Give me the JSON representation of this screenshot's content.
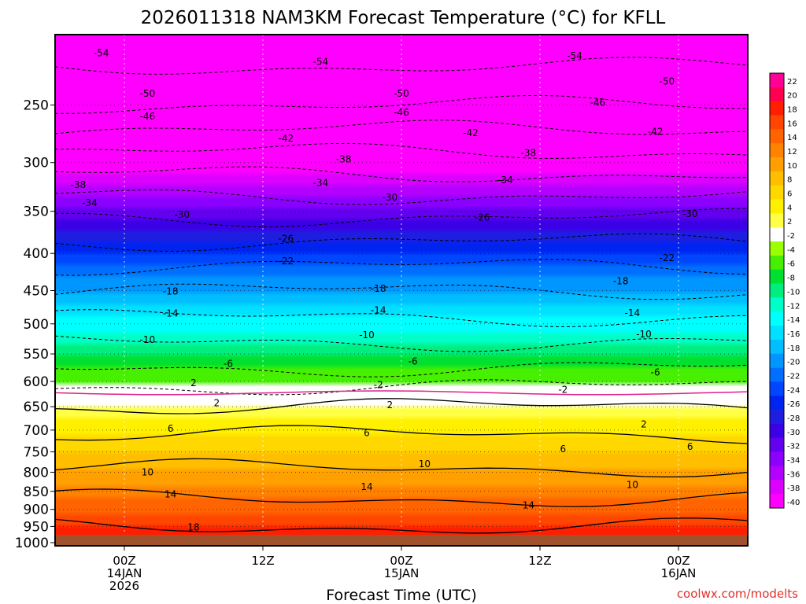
{
  "chart_data": {
    "type": "heatmap",
    "title": "2026011318 NAM3KM Forecast Temperature (°C) for KFLL",
    "xlabel": "Forecast Time (UTC)",
    "ylabel": "",
    "credit": "coolwx.com/modelts",
    "x_ticks": [
      {
        "hour": 6,
        "lines": [
          "00Z",
          "14JAN",
          "2026"
        ]
      },
      {
        "hour": 18,
        "lines": [
          "12Z"
        ]
      },
      {
        "hour": 30,
        "lines": [
          "00Z",
          "15JAN"
        ]
      },
      {
        "hour": 42,
        "lines": [
          "12Z"
        ]
      },
      {
        "hour": 54,
        "lines": [
          "00Z",
          "16JAN"
        ]
      }
    ],
    "xlim_hours": [
      0,
      60
    ],
    "y_ticks": [
      "250",
      "300",
      "350",
      "400",
      "450",
      "500",
      "550",
      "600",
      "650",
      "700",
      "750",
      "800",
      "850",
      "900",
      "950",
      "1000"
    ],
    "y_tick_values": [
      250,
      300,
      350,
      400,
      450,
      500,
      550,
      600,
      650,
      700,
      750,
      800,
      850,
      900,
      950,
      1000
    ],
    "ylim_hpa": [
      200,
      1010
    ],
    "y_scale": "log",
    "grid": "dotted",
    "colorbar_ticks": [
      "22",
      "20",
      "18",
      "16",
      "14",
      "12",
      "10",
      "8",
      "6",
      "4",
      "2",
      "-2",
      "-4",
      "-6",
      "-8",
      "-10",
      "-12",
      "-14",
      "-16",
      "-18",
      "-20",
      "-22",
      "-24",
      "-26",
      "-28",
      "-30",
      "-32",
      "-34",
      "-36",
      "-38",
      "-40"
    ],
    "colorbar_colors": [
      "#ff0096",
      "#ff0050",
      "#ff1e00",
      "#ff4600",
      "#ff6400",
      "#ff8200",
      "#ffa000",
      "#ffbe00",
      "#ffd800",
      "#fff000",
      "#ffff46",
      "#ffffff",
      "#9aff00",
      "#46f000",
      "#00e030",
      "#00ee80",
      "#00ffc8",
      "#00ffff",
      "#00e0ff",
      "#00beff",
      "#0096ff",
      "#006eff",
      "#0046ff",
      "#0024f0",
      "#1e1ee0",
      "#3c00e6",
      "#6400f0",
      "#8c00ff",
      "#b400ff",
      "#dc00ff",
      "#ff00ff"
    ],
    "temperature_profile": [
      {
        "p": 200,
        "t": -57
      },
      {
        "p": 250,
        "t": -50
      },
      {
        "p": 300,
        "t": -40
      },
      {
        "p": 350,
        "t": -31
      },
      {
        "p": 400,
        "t": -24
      },
      {
        "p": 450,
        "t": -18
      },
      {
        "p": 500,
        "t": -13
      },
      {
        "p": 550,
        "t": -8
      },
      {
        "p": 600,
        "t": -4
      },
      {
        "p": 620,
        "t": 0
      },
      {
        "p": 650,
        "t": 2
      },
      {
        "p": 700,
        "t": 5.5
      },
      {
        "p": 750,
        "t": 8
      },
      {
        "p": 800,
        "t": 10.5
      },
      {
        "p": 850,
        "t": 13
      },
      {
        "p": 900,
        "t": 15.5
      },
      {
        "p": 950,
        "t": 18
      },
      {
        "p": 1000,
        "t": 21
      }
    ],
    "contour_labels": [
      {
        "text": "-54",
        "x": 4,
        "p": 212
      },
      {
        "text": "-54",
        "x": 23,
        "p": 218
      },
      {
        "text": "-54",
        "x": 45,
        "p": 214
      },
      {
        "text": "-50",
        "x": 8,
        "p": 241
      },
      {
        "text": "-50",
        "x": 30,
        "p": 241
      },
      {
        "text": "-50",
        "x": 53,
        "p": 232
      },
      {
        "text": "-46",
        "x": 8,
        "p": 259
      },
      {
        "text": "-46",
        "x": 30,
        "p": 256
      },
      {
        "text": "-46",
        "x": 47,
        "p": 248
      },
      {
        "text": "-42",
        "x": 20,
        "p": 278
      },
      {
        "text": "-42",
        "x": 36,
        "p": 273
      },
      {
        "text": "-42",
        "x": 52,
        "p": 272
      },
      {
        "text": "-38",
        "x": 25,
        "p": 297
      },
      {
        "text": "-38",
        "x": 41,
        "p": 291
      },
      {
        "text": "-38",
        "x": 2,
        "p": 322
      },
      {
        "text": "-34",
        "x": 23,
        "p": 320
      },
      {
        "text": "-34",
        "x": 39,
        "p": 317
      },
      {
        "text": "-34",
        "x": 3,
        "p": 341
      },
      {
        "text": "-30",
        "x": 11,
        "p": 354
      },
      {
        "text": "-30",
        "x": 29,
        "p": 335
      },
      {
        "text": "-30",
        "x": 55,
        "p": 353
      },
      {
        "text": "-26",
        "x": 20,
        "p": 382
      },
      {
        "text": "-26",
        "x": 37,
        "p": 357
      },
      {
        "text": "-22",
        "x": 20,
        "p": 410
      },
      {
        "text": "-22",
        "x": 53,
        "p": 406
      },
      {
        "text": "-18",
        "x": 10,
        "p": 451
      },
      {
        "text": "-18",
        "x": 28,
        "p": 447
      },
      {
        "text": "-18",
        "x": 49,
        "p": 437
      },
      {
        "text": "-14",
        "x": 10,
        "p": 484
      },
      {
        "text": "-14",
        "x": 28,
        "p": 479
      },
      {
        "text": "-14",
        "x": 50,
        "p": 483
      },
      {
        "text": "-10",
        "x": 8,
        "p": 526
      },
      {
        "text": "-10",
        "x": 27,
        "p": 518
      },
      {
        "text": "-10",
        "x": 51,
        "p": 517
      },
      {
        "text": "-6",
        "x": 15,
        "p": 567
      },
      {
        "text": "-6",
        "x": 31,
        "p": 563
      },
      {
        "text": "-6",
        "x": 52,
        "p": 583
      },
      {
        "text": "-2",
        "x": 44,
        "p": 616
      },
      {
        "text": "-2",
        "x": 28,
        "p": 607
      },
      {
        "text": "2",
        "x": 12,
        "p": 603
      },
      {
        "text": "2",
        "x": 14,
        "p": 643
      },
      {
        "text": "2",
        "x": 29,
        "p": 647
      },
      {
        "text": "2",
        "x": 51,
        "p": 687
      },
      {
        "text": "6",
        "x": 10,
        "p": 697
      },
      {
        "text": "6",
        "x": 27,
        "p": 706
      },
      {
        "text": "6",
        "x": 44,
        "p": 743
      },
      {
        "text": "6",
        "x": 55,
        "p": 738
      },
      {
        "text": "10",
        "x": 8,
        "p": 800
      },
      {
        "text": "10",
        "x": 32,
        "p": 779
      },
      {
        "text": "10",
        "x": 50,
        "p": 833
      },
      {
        "text": "14",
        "x": 10,
        "p": 858
      },
      {
        "text": "14",
        "x": 27,
        "p": 838
      },
      {
        "text": "14",
        "x": 41,
        "p": 888
      },
      {
        "text": "18",
        "x": 12,
        "p": 952
      }
    ]
  }
}
